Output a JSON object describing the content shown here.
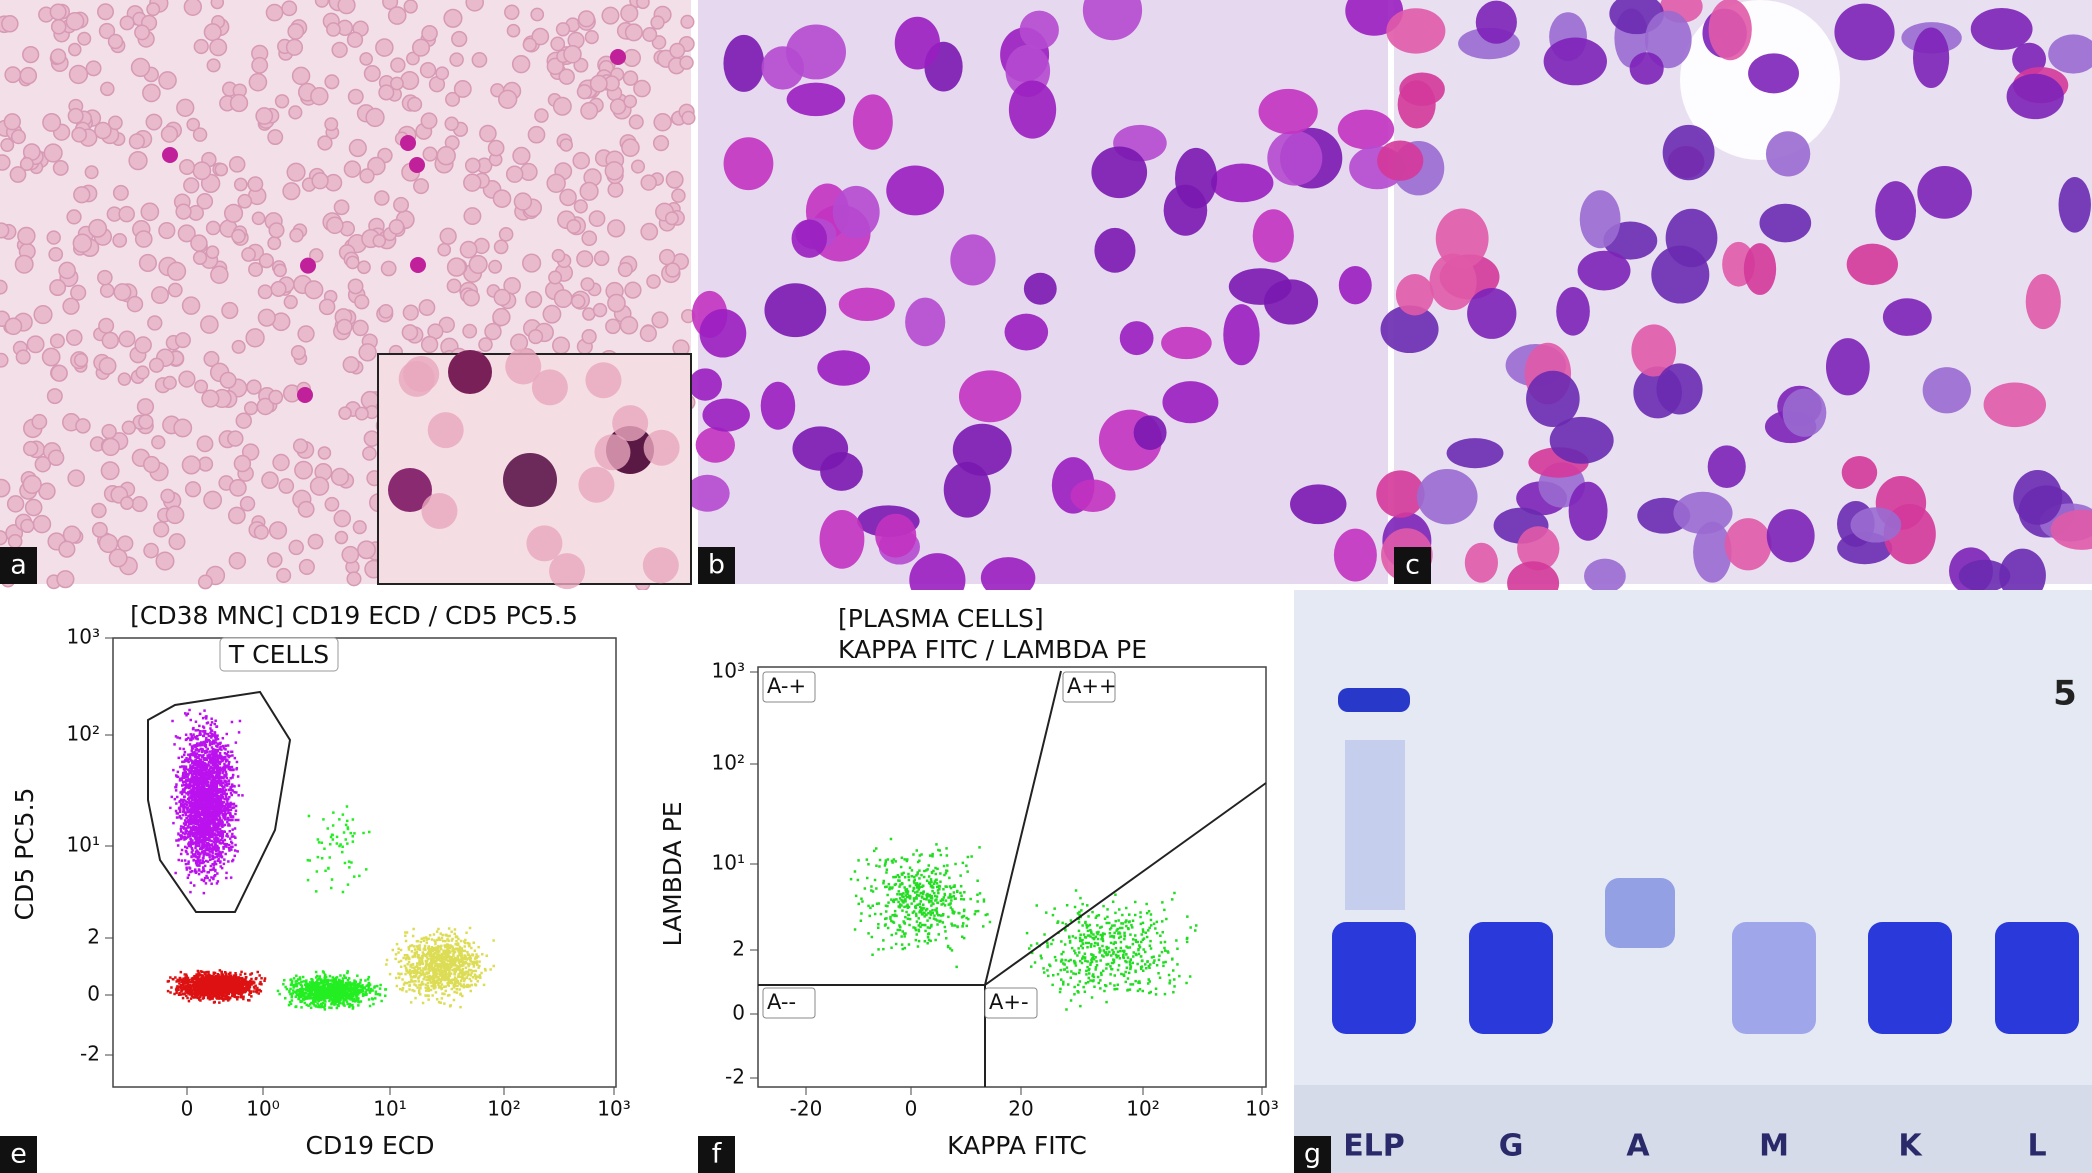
{
  "panels": {
    "a": "a",
    "b": "b",
    "c": "c",
    "e": "e",
    "f": "f",
    "g": "g"
  },
  "panel_e": {
    "title": "[CD38 MNC] CD19 ECD / CD5 PC5.5",
    "gate_label": "T CELLS",
    "x_label": "CD19 ECD",
    "y_label": "CD5 PC5.5",
    "x_ticks": [
      "0",
      "10⁰",
      "10¹",
      "10²",
      "10³"
    ],
    "y_ticks": [
      "10³",
      "10²",
      "10¹",
      "2",
      "0",
      "-2"
    ]
  },
  "panel_f": {
    "title_line1": "[PLASMA CELLS]",
    "title_line2": "KAPPA FITC / LAMBDA PE",
    "x_label": "KAPPA FITC",
    "y_label": "LAMBDA PE",
    "x_ticks": [
      "-20",
      "0",
      "20",
      "10²",
      "10³"
    ],
    "y_ticks": [
      "10³",
      "10²",
      "10¹",
      "2",
      "0",
      "-2"
    ],
    "quadrants": [
      "A-+",
      "A++",
      "A--",
      "A+-"
    ]
  },
  "panel_g": {
    "lanes": [
      "ELP",
      "G",
      "A",
      "M",
      "K",
      "L"
    ],
    "marker": "5"
  }
}
